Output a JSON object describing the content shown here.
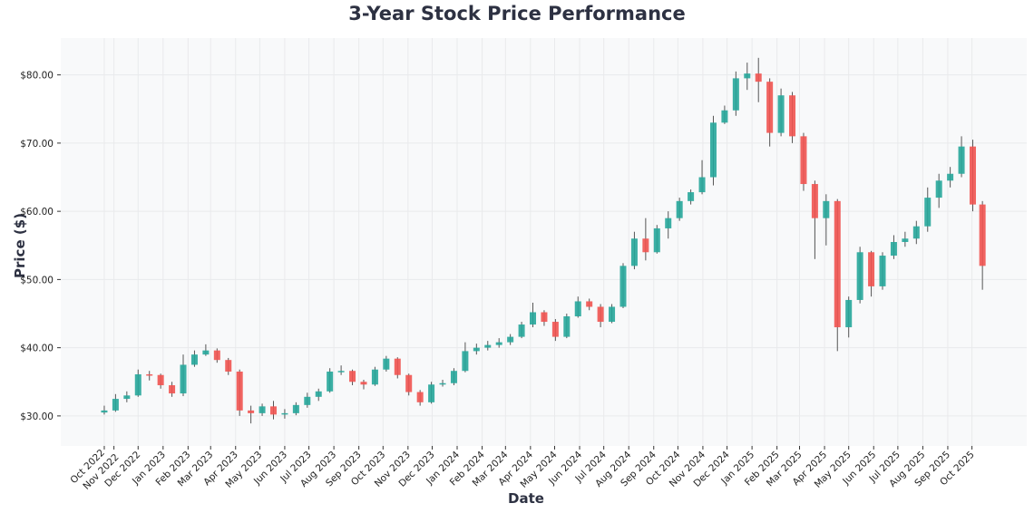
{
  "chart_data": {
    "type": "candlestick",
    "title": "3-Year Stock Price Performance",
    "xlabel": "Date",
    "ylabel": "Price ($)",
    "ylim": [
      25.6,
      85.4
    ],
    "xlim": [
      "2022-08-27",
      "2025-12-08"
    ],
    "yticks": [
      30,
      40,
      50,
      60,
      70,
      80
    ],
    "ytick_labels": [
      "$30.00",
      "$40.00",
      "$50.00",
      "$60.00",
      "$70.00",
      "$80.00"
    ],
    "xticks": [
      {
        "date": "2022-10-20",
        "label": "Oct 2022"
      },
      {
        "date": "2022-11-01",
        "label": "Nov 2022"
      },
      {
        "date": "2022-12-01",
        "label": "Dec 2022"
      },
      {
        "date": "2023-01-01",
        "label": "Jan 2023"
      },
      {
        "date": "2023-02-01",
        "label": "Feb 2023"
      },
      {
        "date": "2023-03-01",
        "label": "Mar 2023"
      },
      {
        "date": "2023-04-01",
        "label": "Apr 2023"
      },
      {
        "date": "2023-05-01",
        "label": "May 2023"
      },
      {
        "date": "2023-06-01",
        "label": "Jun 2023"
      },
      {
        "date": "2023-07-01",
        "label": "Jul 2023"
      },
      {
        "date": "2023-08-01",
        "label": "Aug 2023"
      },
      {
        "date": "2023-09-01",
        "label": "Sep 2023"
      },
      {
        "date": "2023-10-01",
        "label": "Oct 2023"
      },
      {
        "date": "2023-11-01",
        "label": "Nov 2023"
      },
      {
        "date": "2023-12-01",
        "label": "Dec 2023"
      },
      {
        "date": "2024-01-01",
        "label": "Jan 2024"
      },
      {
        "date": "2024-02-01",
        "label": "Feb 2024"
      },
      {
        "date": "2024-03-01",
        "label": "Mar 2024"
      },
      {
        "date": "2024-04-01",
        "label": "Apr 2024"
      },
      {
        "date": "2024-05-01",
        "label": "May 2024"
      },
      {
        "date": "2024-06-01",
        "label": "Jun 2024"
      },
      {
        "date": "2024-07-01",
        "label": "Jul 2024"
      },
      {
        "date": "2024-08-01",
        "label": "Aug 2024"
      },
      {
        "date": "2024-09-01",
        "label": "Sep 2024"
      },
      {
        "date": "2024-10-01",
        "label": "Oct 2024"
      },
      {
        "date": "2024-11-01",
        "label": "Nov 2024"
      },
      {
        "date": "2024-12-01",
        "label": "Dec 2024"
      },
      {
        "date": "2025-01-01",
        "label": "Jan 2025"
      },
      {
        "date": "2025-02-01",
        "label": "Feb 2025"
      },
      {
        "date": "2025-03-01",
        "label": "Mar 2025"
      },
      {
        "date": "2025-04-01",
        "label": "Apr 2025"
      },
      {
        "date": "2025-05-01",
        "label": "May 2025"
      },
      {
        "date": "2025-06-01",
        "label": "Jun 2025"
      },
      {
        "date": "2025-07-01",
        "label": "Jul 2025"
      },
      {
        "date": "2025-08-01",
        "label": "Aug 2025"
      },
      {
        "date": "2025-09-01",
        "label": "Sep 2025"
      },
      {
        "date": "2025-10-01",
        "label": "Oct 2025"
      }
    ],
    "grid": true,
    "colors": {
      "up": "#26a69a",
      "down": "#ef5350",
      "wick": "#555555",
      "plot_bg": "#f8f9fa",
      "grid": "#e9eaec",
      "text": "#2d3142"
    },
    "candles_columns": [
      "date",
      "open",
      "high",
      "low",
      "close"
    ],
    "candles": [
      [
        "2022-10-20",
        30.5,
        31.5,
        30.2,
        30.8
      ],
      [
        "2022-11-03",
        30.8,
        33.2,
        30.6,
        32.5
      ],
      [
        "2022-11-17",
        32.5,
        33.6,
        32.0,
        33.0
      ],
      [
        "2022-12-01",
        33.0,
        36.8,
        32.8,
        36.1
      ],
      [
        "2022-12-15",
        36.1,
        36.6,
        35.2,
        36.0
      ],
      [
        "2022-12-29",
        36.0,
        36.2,
        34.0,
        34.5
      ],
      [
        "2023-01-12",
        34.5,
        35.0,
        32.8,
        33.3
      ],
      [
        "2023-01-26",
        33.3,
        39.0,
        32.9,
        37.5
      ],
      [
        "2023-02-09",
        37.5,
        39.6,
        37.2,
        39.0
      ],
      [
        "2023-02-23",
        39.0,
        40.5,
        38.8,
        39.6
      ],
      [
        "2023-03-09",
        39.6,
        39.9,
        37.8,
        38.2
      ],
      [
        "2023-03-23",
        38.2,
        38.5,
        36.0,
        36.5
      ],
      [
        "2023-04-06",
        36.5,
        36.8,
        30.0,
        30.8
      ],
      [
        "2023-04-20",
        30.8,
        31.5,
        28.9,
        30.4
      ],
      [
        "2023-05-04",
        30.4,
        31.8,
        30.0,
        31.4
      ],
      [
        "2023-05-18",
        31.4,
        32.2,
        29.5,
        30.2
      ],
      [
        "2023-06-01",
        30.2,
        31.0,
        29.6,
        30.4
      ],
      [
        "2023-06-15",
        30.4,
        32.0,
        30.1,
        31.6
      ],
      [
        "2023-06-29",
        31.6,
        33.4,
        31.2,
        32.8
      ],
      [
        "2023-07-13",
        32.8,
        34.0,
        32.2,
        33.6
      ],
      [
        "2023-07-27",
        33.6,
        37.0,
        33.4,
        36.5
      ],
      [
        "2023-08-10",
        36.5,
        37.4,
        36.0,
        36.6
      ],
      [
        "2023-08-24",
        36.6,
        36.8,
        34.5,
        35.0
      ],
      [
        "2023-09-07",
        35.0,
        35.3,
        33.9,
        34.6
      ],
      [
        "2023-09-21",
        34.6,
        37.2,
        34.4,
        36.8
      ],
      [
        "2023-10-05",
        36.8,
        38.8,
        36.5,
        38.4
      ],
      [
        "2023-10-19",
        38.4,
        38.6,
        35.5,
        36.0
      ],
      [
        "2023-11-02",
        36.0,
        36.2,
        33.0,
        33.5
      ],
      [
        "2023-11-16",
        33.5,
        33.8,
        31.5,
        32.0
      ],
      [
        "2023-11-30",
        32.0,
        35.0,
        31.8,
        34.6
      ],
      [
        "2023-12-14",
        34.6,
        35.3,
        34.3,
        34.8
      ],
      [
        "2023-12-28",
        34.8,
        37.0,
        34.5,
        36.6
      ],
      [
        "2024-01-11",
        36.6,
        40.8,
        36.4,
        39.5
      ],
      [
        "2024-01-25",
        39.5,
        40.6,
        39.0,
        40.0
      ],
      [
        "2024-02-08",
        40.0,
        41.0,
        39.6,
        40.4
      ],
      [
        "2024-02-22",
        40.4,
        41.4,
        40.0,
        40.8
      ],
      [
        "2024-03-07",
        40.8,
        42.0,
        40.4,
        41.6
      ],
      [
        "2024-03-21",
        41.6,
        43.8,
        41.4,
        43.4
      ],
      [
        "2024-04-04",
        43.4,
        46.6,
        43.0,
        45.2
      ],
      [
        "2024-04-18",
        45.2,
        45.5,
        43.2,
        43.8
      ],
      [
        "2024-05-02",
        43.8,
        44.2,
        41.0,
        41.6
      ],
      [
        "2024-05-16",
        41.6,
        45.0,
        41.4,
        44.6
      ],
      [
        "2024-05-30",
        44.6,
        47.5,
        44.4,
        46.8
      ],
      [
        "2024-06-13",
        46.8,
        47.2,
        45.5,
        46.0
      ],
      [
        "2024-06-27",
        46.0,
        46.4,
        43.0,
        43.8
      ],
      [
        "2024-07-11",
        43.8,
        46.4,
        43.6,
        46.0
      ],
      [
        "2024-07-25",
        46.0,
        52.4,
        45.8,
        52.0
      ],
      [
        "2024-08-08",
        52.0,
        57.0,
        51.5,
        56.0
      ],
      [
        "2024-08-22",
        56.0,
        59.0,
        52.8,
        54.0
      ],
      [
        "2024-09-05",
        54.0,
        58.0,
        53.8,
        57.5
      ],
      [
        "2024-09-19",
        57.5,
        60.0,
        56.0,
        59.0
      ],
      [
        "2024-10-03",
        59.0,
        62.0,
        58.6,
        61.5
      ],
      [
        "2024-10-17",
        61.5,
        63.2,
        61.0,
        62.8
      ],
      [
        "2024-10-31",
        62.8,
        67.5,
        62.5,
        65.0
      ],
      [
        "2024-11-14",
        65.0,
        74.0,
        63.8,
        73.0
      ],
      [
        "2024-11-28",
        73.0,
        75.5,
        72.8,
        74.8
      ],
      [
        "2024-12-12",
        74.8,
        80.5,
        74.0,
        79.5
      ],
      [
        "2024-12-26",
        79.5,
        81.8,
        77.8,
        80.2
      ],
      [
        "2025-01-09",
        80.2,
        82.5,
        76.0,
        79.0
      ],
      [
        "2025-01-23",
        79.0,
        79.5,
        69.5,
        71.5
      ],
      [
        "2025-02-06",
        71.5,
        78.0,
        71.0,
        77.0
      ],
      [
        "2025-02-20",
        77.0,
        77.5,
        70.0,
        71.0
      ],
      [
        "2025-03-06",
        71.0,
        71.5,
        63.0,
        64.0
      ],
      [
        "2025-03-20",
        64.0,
        64.5,
        53.0,
        59.0
      ],
      [
        "2025-04-03",
        59.0,
        62.5,
        55.0,
        61.5
      ],
      [
        "2025-04-17",
        61.5,
        61.8,
        39.5,
        43.0
      ],
      [
        "2025-05-01",
        43.0,
        47.5,
        41.5,
        47.0
      ],
      [
        "2025-05-15",
        47.0,
        54.8,
        46.5,
        54.0
      ],
      [
        "2025-05-29",
        54.0,
        54.2,
        47.5,
        49.0
      ],
      [
        "2025-06-12",
        49.0,
        54.0,
        48.5,
        53.5
      ],
      [
        "2025-06-26",
        53.5,
        56.5,
        53.0,
        55.5
      ],
      [
        "2025-07-10",
        55.5,
        57.0,
        54.8,
        56.0
      ],
      [
        "2025-07-24",
        56.0,
        58.6,
        55.2,
        57.8
      ],
      [
        "2025-08-07",
        57.8,
        63.5,
        57.0,
        62.0
      ],
      [
        "2025-08-21",
        62.0,
        65.5,
        60.5,
        64.5
      ],
      [
        "2025-09-04",
        64.5,
        66.5,
        63.5,
        65.5
      ],
      [
        "2025-09-18",
        65.5,
        71.0,
        65.0,
        69.5
      ],
      [
        "2025-10-02",
        69.5,
        70.5,
        60.0,
        61.0
      ],
      [
        "2025-10-14",
        61.0,
        61.5,
        48.5,
        52.0
      ]
    ]
  }
}
